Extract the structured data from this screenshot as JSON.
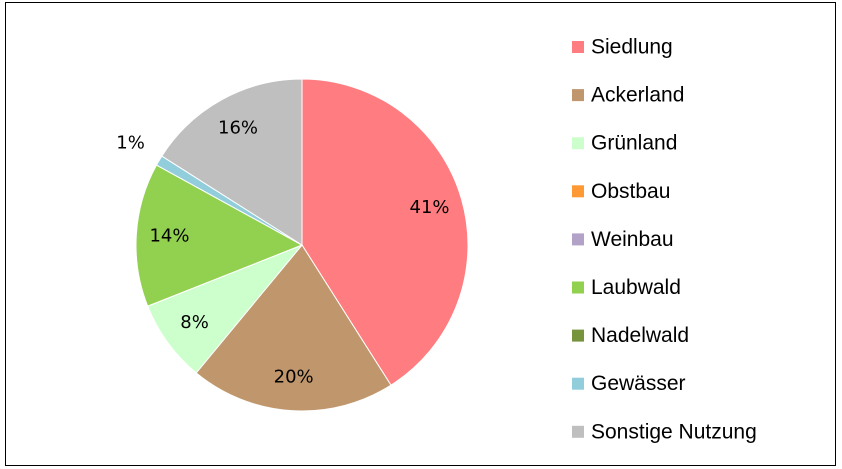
{
  "chart_data": {
    "type": "pie",
    "categories": [
      "Siedlung",
      "Ackerland",
      "Grünland",
      "Obstbau",
      "Weinbau",
      "Laubwald",
      "Nadelwald",
      "Gewässer",
      "Sonstige Nutzung"
    ],
    "values": [
      41,
      20,
      8,
      0,
      0,
      14,
      0,
      1,
      16
    ],
    "value_labels": [
      "41%",
      "20%",
      "8%",
      null,
      null,
      "14%",
      null,
      "1%",
      "16%"
    ],
    "colors": [
      "#ff7c80",
      "#c0966c",
      "#ccffcc",
      "#ff9933",
      "#b3a2c7",
      "#92d050",
      "#77933c",
      "#92cddc",
      "#bfbfbf"
    ],
    "legend": "right"
  }
}
